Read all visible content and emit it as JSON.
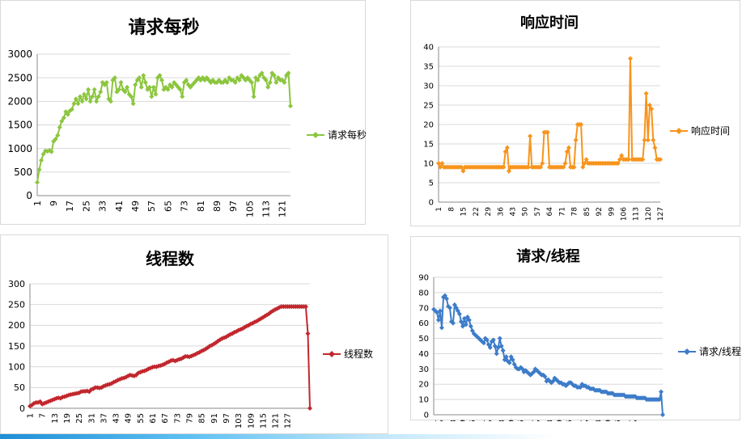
{
  "chart_data": [
    {
      "type": "line",
      "title": "请求每秒",
      "color": "#8CC63F",
      "legend": "right",
      "ylim": [
        0,
        3000
      ],
      "yticks": [
        0,
        500,
        1000,
        1500,
        2000,
        2500,
        3000
      ],
      "xtick_labels": [
        "1",
        "9",
        "17",
        "25",
        "33",
        "41",
        "49",
        "57",
        "65",
        "73",
        "81",
        "89",
        "97",
        "105",
        "113",
        "121"
      ],
      "series": [
        {
          "name": "请求每秒",
          "values": [
            280,
            550,
            750,
            880,
            950,
            940,
            960,
            930,
            1150,
            1200,
            1280,
            1450,
            1580,
            1650,
            1780,
            1720,
            1800,
            1830,
            1950,
            2050,
            1950,
            2100,
            2000,
            2150,
            2050,
            2250,
            2000,
            2100,
            2250,
            2000,
            2100,
            2200,
            2400,
            2350,
            2400,
            2050,
            2000,
            2450,
            2500,
            2200,
            2250,
            2400,
            2250,
            2200,
            2300,
            2150,
            2100,
            1950,
            2350,
            2450,
            2500,
            2300,
            2550,
            2400,
            2250,
            2300,
            2100,
            2300,
            2150,
            2500,
            2550,
            2450,
            2250,
            2300,
            2250,
            2350,
            2300,
            2400,
            2350,
            2300,
            2250,
            2100,
            2400,
            2450,
            2350,
            2300,
            2350,
            2400,
            2450,
            2500,
            2450,
            2500,
            2450,
            2500,
            2450,
            2400,
            2450,
            2400,
            2400,
            2450,
            2400,
            2400,
            2450,
            2400,
            2500,
            2450,
            2450,
            2400,
            2500,
            2450,
            2550,
            2500,
            2450,
            2500,
            2450,
            2400,
            2100,
            2500,
            2450,
            2550,
            2600,
            2500,
            2450,
            2300,
            2400,
            2600,
            2550,
            2400,
            2500,
            2450,
            2450,
            2400,
            2550,
            2600,
            1900
          ]
        }
      ]
    },
    {
      "type": "line",
      "title": "响应时间",
      "color": "#F7941D",
      "legend": "right",
      "ylim": [
        0,
        40
      ],
      "yticks": [
        0,
        5,
        10,
        15,
        20,
        25,
        30,
        35,
        40
      ],
      "xtick_labels": [
        "1",
        "8",
        "15",
        "22",
        "29",
        "36",
        "43",
        "50",
        "57",
        "64",
        "71",
        "78",
        "85",
        "92",
        "99",
        "106",
        "113",
        "120",
        "127"
      ],
      "series": [
        {
          "name": "响应时间",
          "values": [
            10,
            9,
            10,
            9,
            9,
            9,
            9,
            9,
            9,
            9,
            9,
            9,
            9,
            9,
            8,
            9,
            9,
            9,
            9,
            9,
            9,
            9,
            9,
            9,
            9,
            9,
            9,
            9,
            9,
            9,
            9,
            9,
            9,
            9,
            9,
            9,
            9,
            9,
            13,
            14,
            8,
            9,
            9,
            9,
            9,
            9,
            9,
            9,
            9,
            9,
            9,
            9,
            17,
            9,
            9,
            9,
            9,
            9,
            9,
            10,
            18,
            18,
            18,
            9,
            9,
            9,
            9,
            9,
            9,
            9,
            9,
            9,
            10,
            13,
            14,
            9,
            9,
            9,
            16,
            20,
            20,
            20,
            9,
            10,
            11,
            10,
            10,
            10,
            10,
            10,
            10,
            10,
            10,
            10,
            10,
            10,
            10,
            10,
            10,
            10,
            10,
            10,
            10,
            11,
            12,
            11,
            11,
            11,
            11,
            37,
            11,
            11,
            11,
            11,
            11,
            11,
            11,
            16,
            28,
            16,
            25,
            24,
            16,
            14,
            11,
            11,
            11
          ]
        }
      ]
    },
    {
      "type": "line",
      "title": "线程数",
      "color": "#C1272D",
      "legend": "right",
      "ylim": [
        0,
        300
      ],
      "yticks": [
        0,
        50,
        100,
        150,
        200,
        250,
        300
      ],
      "xtick_labels": [
        "1",
        "7",
        "13",
        "19",
        "25",
        "31",
        "37",
        "43",
        "49",
        "55",
        "61",
        "67",
        "73",
        "79",
        "85",
        "91",
        "97",
        "103",
        "109",
        "115",
        "121",
        "127"
      ],
      "series": [
        {
          "name": "线程数",
          "values": [
            5,
            8,
            12,
            14,
            14,
            16,
            10,
            12,
            14,
            16,
            18,
            20,
            22,
            24,
            25,
            24,
            27,
            28,
            30,
            32,
            33,
            34,
            35,
            36,
            37,
            40,
            41,
            41,
            42,
            40,
            45,
            47,
            50,
            50,
            49,
            50,
            53,
            55,
            57,
            58,
            60,
            63,
            65,
            68,
            70,
            72,
            73,
            75,
            78,
            80,
            79,
            78,
            80,
            85,
            87,
            89,
            90,
            92,
            95,
            97,
            99,
            100,
            100,
            102,
            103,
            105,
            107,
            110,
            112,
            115,
            116,
            114,
            116,
            118,
            119,
            122,
            125,
            125,
            124,
            126,
            128,
            130,
            133,
            135,
            138,
            140,
            143,
            146,
            150,
            152,
            155,
            158,
            162,
            165,
            168,
            170,
            172,
            175,
            178,
            180,
            183,
            185,
            188,
            190,
            192,
            195,
            198,
            200,
            203,
            205,
            208,
            210,
            213,
            216,
            219,
            222,
            225,
            228,
            232,
            235,
            238,
            240,
            243,
            245,
            245,
            245,
            245,
            245,
            245,
            245,
            245,
            245,
            245,
            245,
            245,
            245,
            180,
            0
          ]
        }
      ]
    },
    {
      "type": "line",
      "title": "请求/线程",
      "color": "#3D7CC9",
      "legend": "right",
      "ylim": [
        0,
        90
      ],
      "yticks": [
        0,
        10,
        20,
        30,
        40,
        50,
        60,
        70,
        80,
        90
      ],
      "xtick_labels": [
        "1",
        "7",
        "13",
        "19",
        "25",
        "31",
        "37",
        "43",
        "49",
        "55",
        "61",
        "67",
        "73",
        "79",
        "85",
        "91",
        "97",
        "103",
        "109",
        "115",
        "121",
        "127"
      ],
      "series": [
        {
          "name": "请求/线程",
          "values": [
            69,
            68,
            67,
            62,
            68,
            57,
            77,
            78,
            76,
            71,
            70,
            61,
            60,
            72,
            70,
            68,
            66,
            61,
            58,
            63,
            59,
            64,
            62,
            58,
            55,
            53,
            52,
            51,
            50,
            49,
            48,
            47,
            50,
            49,
            46,
            44,
            48,
            49,
            45,
            40,
            44,
            50,
            45,
            42,
            36,
            38,
            35,
            34,
            38,
            36,
            33,
            31,
            30,
            30,
            31,
            30,
            28,
            29,
            28,
            27,
            26,
            27,
            28,
            30,
            29,
            28,
            27,
            26,
            26,
            25,
            22,
            23,
            22,
            21,
            22,
            24,
            23,
            22,
            21,
            21,
            20,
            20,
            19,
            20,
            21,
            21,
            20,
            19,
            19,
            18,
            18,
            18,
            20,
            19,
            19,
            18,
            18,
            17,
            17,
            17,
            16,
            16,
            16,
            16,
            15,
            15,
            15,
            15,
            14,
            14,
            14,
            14,
            13,
            13,
            13,
            13,
            13,
            13,
            13,
            12,
            12,
            12,
            12,
            12,
            12,
            12,
            11,
            11,
            11,
            11,
            11,
            11,
            10,
            10,
            10,
            10,
            10,
            10,
            10,
            10,
            10,
            15,
            0
          ]
        }
      ]
    }
  ]
}
